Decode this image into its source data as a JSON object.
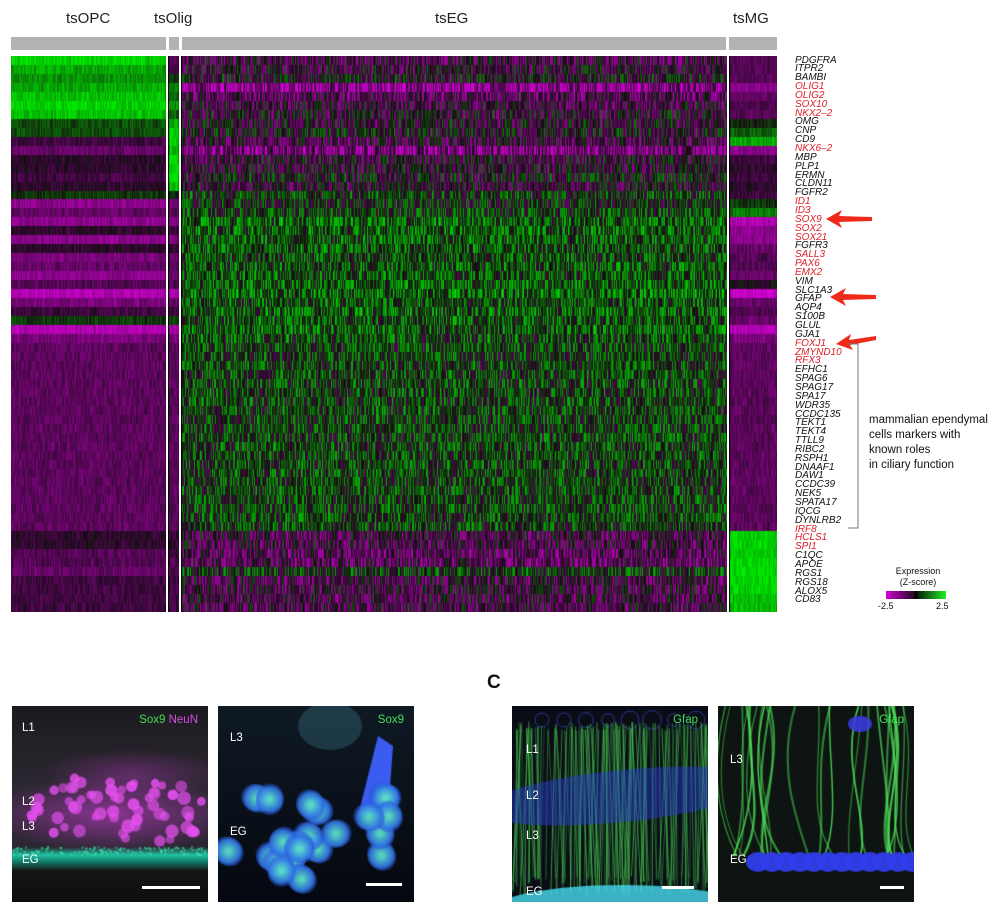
{
  "groups": [
    {
      "label": "tsOPC"
    },
    {
      "label": "tsOlig"
    },
    {
      "label": "tsEG"
    },
    {
      "label": "tsMG"
    }
  ],
  "genes": [
    {
      "name": "PDGFRA",
      "red": false
    },
    {
      "name": "ITPR2",
      "red": false
    },
    {
      "name": "BAMBI",
      "red": false
    },
    {
      "name": "OLIG1",
      "red": true
    },
    {
      "name": "OLIG2",
      "red": true
    },
    {
      "name": "SOX10",
      "red": true
    },
    {
      "name": "NKX2–2",
      "red": true
    },
    {
      "name": "OMG",
      "red": false
    },
    {
      "name": "CNP",
      "red": false
    },
    {
      "name": "CD9",
      "red": false
    },
    {
      "name": "NKX6–2",
      "red": true
    },
    {
      "name": "MBP",
      "red": false
    },
    {
      "name": "PLP1",
      "red": false
    },
    {
      "name": "ERMN",
      "red": false
    },
    {
      "name": "CLDN11",
      "red": false
    },
    {
      "name": "FGFR2",
      "red": false
    },
    {
      "name": "ID1",
      "red": true
    },
    {
      "name": "ID3",
      "red": true
    },
    {
      "name": "SOX9",
      "red": true
    },
    {
      "name": "SOX2",
      "red": true
    },
    {
      "name": "SOX21",
      "red": true
    },
    {
      "name": "FGFR3",
      "red": false
    },
    {
      "name": "SALL3",
      "red": true
    },
    {
      "name": "PAX6",
      "red": true
    },
    {
      "name": "EMX2",
      "red": true
    },
    {
      "name": "VIM",
      "red": false
    },
    {
      "name": "SLC1A3",
      "red": false
    },
    {
      "name": "GFAP",
      "red": false
    },
    {
      "name": "AQP4",
      "red": false
    },
    {
      "name": "S100B",
      "red": false
    },
    {
      "name": "GLUL",
      "red": false
    },
    {
      "name": "GJA1",
      "red": false
    },
    {
      "name": "FOXJ1",
      "red": true
    },
    {
      "name": "ZMYND10",
      "red": true
    },
    {
      "name": "RFX3",
      "red": true
    },
    {
      "name": "EFHC1",
      "red": false
    },
    {
      "name": "SPAG6",
      "red": false
    },
    {
      "name": "SPAG17",
      "red": false
    },
    {
      "name": "SPA17",
      "red": false
    },
    {
      "name": "WDR35",
      "red": false
    },
    {
      "name": "CCDC135",
      "red": false
    },
    {
      "name": "TEKT1",
      "red": false
    },
    {
      "name": "TEKT4",
      "red": false
    },
    {
      "name": "TTLL9",
      "red": false
    },
    {
      "name": "RIBC2",
      "red": false
    },
    {
      "name": "RSPH1",
      "red": false
    },
    {
      "name": "DNAAF1",
      "red": false
    },
    {
      "name": "DAW1",
      "red": false
    },
    {
      "name": "CCDC39",
      "red": false
    },
    {
      "name": "NEK5",
      "red": false
    },
    {
      "name": "SPATA17",
      "red": false
    },
    {
      "name": "IQCG",
      "red": false
    },
    {
      "name": "DYNLRB2",
      "red": false
    },
    {
      "name": "IRF8",
      "red": true
    },
    {
      "name": "HCLS1",
      "red": true
    },
    {
      "name": "SPI1",
      "red": true
    },
    {
      "name": "C1QC",
      "red": false
    },
    {
      "name": "APOE",
      "red": false
    },
    {
      "name": "RGS1",
      "red": false
    },
    {
      "name": "RGS18",
      "red": false
    },
    {
      "name": "ALOX5",
      "red": false
    },
    {
      "name": "CD83",
      "red": false
    }
  ],
  "annotation": {
    "lines": [
      "mammalian ependymal",
      "cells markers with",
      "known roles",
      "in ciliary function"
    ]
  },
  "legend": {
    "title_line1": "Expression",
    "title_line2": "(Z-score)",
    "min_label": "-2.5",
    "max_label": "2.5",
    "colors": {
      "low": "#d400d4",
      "mid": "#000000",
      "high": "#22ee22"
    }
  },
  "arrows": [
    {
      "gene": "SOX9"
    },
    {
      "gene": "GFAP"
    },
    {
      "gene": "FOXJ1"
    }
  ],
  "panel_letters": {
    "c": "C"
  },
  "micro": {
    "p1": {
      "stain_a": "Sox9",
      "stain_b": "NeuN",
      "labels": [
        "L1",
        "L2",
        "L3",
        "EG"
      ]
    },
    "p2": {
      "stain": "Sox9",
      "labels": [
        "L3",
        "EG"
      ]
    },
    "p3": {
      "stain": "Gfap",
      "labels": [
        "L1",
        "L2",
        "L3",
        "EG"
      ]
    },
    "p4": {
      "stain": "Gfap",
      "labels": [
        "L3",
        "EG"
      ]
    }
  },
  "colors": {
    "gene_red": "#e0202a",
    "arrow": "#f02a1a",
    "nucleus_blue": "#2a3ad8",
    "sox9_green": "#3fe050",
    "neun_magenta": "#d050e0"
  }
}
